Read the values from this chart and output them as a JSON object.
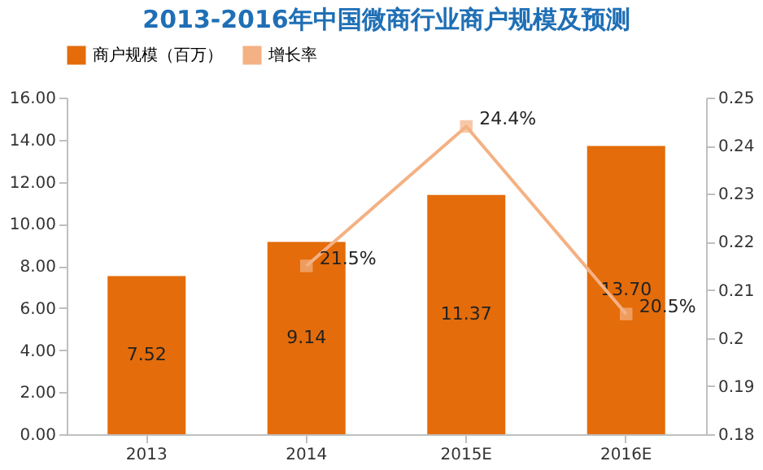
{
  "chart_data": {
    "type": "bar",
    "title": "2013-2016年中国微商行业商户规模及预测",
    "categories": [
      "2013",
      "2014",
      "2015E",
      "2016E"
    ],
    "series": [
      {
        "name": "商户规模（百万）",
        "color": "#e46c0a",
        "values": [
          7.52,
          9.14,
          11.37,
          13.7
        ],
        "value_labels": [
          "7.52",
          "9.14",
          "11.37",
          "13.70"
        ]
      },
      {
        "name": "增长率",
        "type": "line",
        "axis": "y2",
        "color": "#f4b183",
        "values": [
          null,
          0.215,
          0.244,
          0.205
        ],
        "value_labels": [
          null,
          "21.5%",
          "24.4%",
          "20.5%"
        ]
      }
    ],
    "ylim": [
      0,
      16
    ],
    "yticks": [
      {
        "value": 0,
        "label": "0.00"
      },
      {
        "value": 2,
        "label": "2.00"
      },
      {
        "value": 4,
        "label": "4.00"
      },
      {
        "value": 6,
        "label": "6.00"
      },
      {
        "value": 8,
        "label": "8.00"
      },
      {
        "value": 10,
        "label": "10.00"
      },
      {
        "value": 12,
        "label": "12.00"
      },
      {
        "value": 14,
        "label": "14.00"
      },
      {
        "value": 16,
        "label": "16.00"
      }
    ],
    "y2lim": [
      0.18,
      0.25
    ],
    "y2ticks": [
      0.18,
      0.19,
      0.2,
      0.21,
      0.22,
      0.23,
      0.24,
      0.25
    ],
    "legend": "top",
    "marker": "square",
    "grid": false
  }
}
